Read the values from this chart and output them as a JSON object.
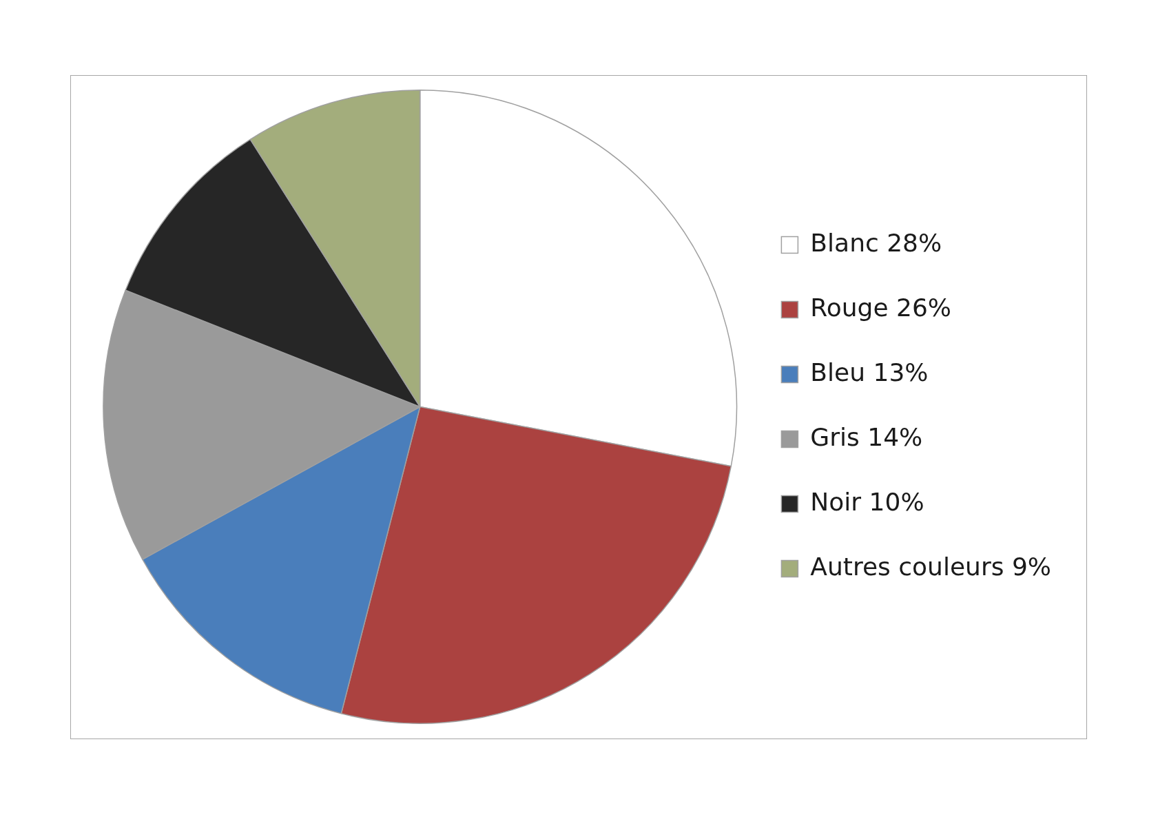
{
  "chart_data": {
    "type": "pie",
    "categories": [
      "Blanc 28%",
      "Rouge 26%",
      "Bleu 13%",
      "Gris 14%",
      "Noir 10%",
      "Autres couleurs 9%"
    ],
    "values": [
      28,
      26,
      13,
      14,
      10,
      9
    ],
    "colors": [
      "#ffffff",
      "#ab4240",
      "#4a7ebb",
      "#9a9a9a",
      "#262626",
      "#a3ad7c"
    ],
    "legend": "right"
  }
}
